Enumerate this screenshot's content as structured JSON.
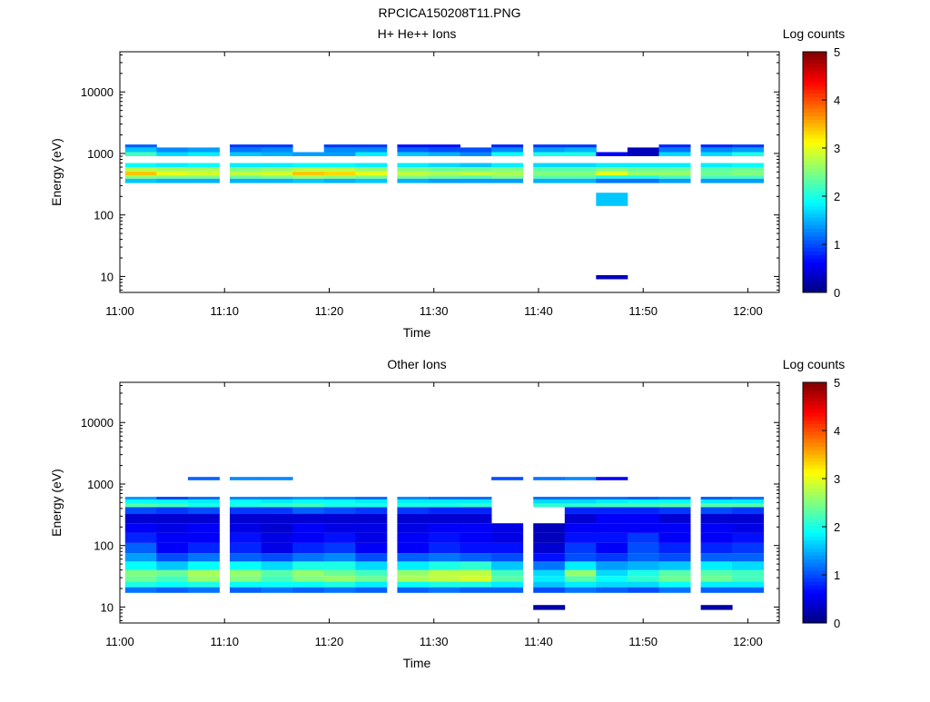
{
  "figure": {
    "title": "RPCICA150208T11.PNG"
  },
  "colorbar": {
    "label": "Log counts",
    "ticks": [
      0,
      1,
      2,
      3,
      4,
      5
    ],
    "colormap": "jet"
  },
  "chart_data": [
    {
      "type": "heatmap",
      "title": "H+ He++ Ions",
      "xlabel": "Time",
      "ylabel": "Energy (eV)",
      "x_ticks": [
        "11:00",
        "11:10",
        "11:20",
        "11:30",
        "11:40",
        "11:50",
        "12:00"
      ],
      "y_ticks": [
        "10",
        "100",
        "1000",
        "10000"
      ],
      "y_scale": "log",
      "xlim": [
        "11:00",
        "12:03"
      ],
      "ylim": [
        5.5,
        45000
      ],
      "color_range": [
        0,
        5
      ],
      "time_bins": [
        "11:02",
        "11:05",
        "11:08",
        "11:12",
        "11:15",
        "11:18",
        "11:21",
        "11:24",
        "11:28",
        "11:31",
        "11:34",
        "11:37",
        "11:41",
        "11:44",
        "11:47",
        "11:50",
        "11:53",
        "11:57",
        "12:00"
      ],
      "bands": [
        {
          "e": [
            330,
            390
          ],
          "v": [
            1.6,
            1.5,
            1.5,
            1.5,
            1.5,
            1.6,
            1.5,
            1.6,
            1.5,
            1.4,
            1.4,
            1.4,
            1.5,
            1.5,
            1.2,
            1.2,
            1.4,
            1.4,
            1.4
          ]
        },
        {
          "e": [
            390,
            440
          ],
          "v": [
            2.6,
            2.5,
            2.5,
            2.4,
            2.5,
            2.7,
            2.6,
            2.5,
            2.5,
            2.4,
            2.3,
            2.5,
            2.3,
            2.3,
            2.0,
            2.0,
            2.2,
            2.2,
            2.2
          ]
        },
        {
          "e": [
            440,
            510
          ],
          "v": [
            3.4,
            3.0,
            2.9,
            2.8,
            2.9,
            3.4,
            3.3,
            3.0,
            2.8,
            2.7,
            2.8,
            2.7,
            2.5,
            2.5,
            3.0,
            2.6,
            2.6,
            2.4,
            2.5
          ]
        },
        {
          "e": [
            510,
            600
          ],
          "v": [
            2.8,
            2.7,
            2.7,
            2.5,
            2.6,
            2.8,
            2.8,
            2.6,
            2.5,
            2.4,
            2.4,
            2.5,
            2.3,
            2.3,
            2.5,
            2.4,
            2.4,
            2.3,
            2.4
          ]
        },
        {
          "e": [
            600,
            700
          ],
          "v": [
            1.9,
            1.8,
            1.9,
            1.8,
            1.8,
            1.9,
            1.9,
            1.8,
            1.8,
            1.7,
            1.6,
            1.8,
            1.7,
            1.7,
            1.8,
            1.8,
            1.8,
            1.8,
            1.9
          ]
        },
        {
          "e": [
            900,
            1050
          ],
          "v": [
            2.2,
            1.7,
            1.8,
            1.6,
            1.5,
            1.4,
            1.4,
            1.8,
            1.6,
            1.5,
            1.3,
            1.9,
            2.0,
            2.0,
            0.6,
            0.3,
            1.7,
            1.7,
            2.0
          ]
        },
        {
          "e": [
            1050,
            1250
          ],
          "v": [
            1.6,
            1.3,
            1.4,
            1.2,
            1.3,
            0,
            1.3,
            1.3,
            1.1,
            1.0,
            1.0,
            1.3,
            1.4,
            1.5,
            0,
            0.3,
            1.2,
            1.3,
            1.4
          ]
        },
        {
          "e": [
            1250,
            1400
          ],
          "v": [
            1.1,
            0,
            0,
            0.9,
            0.9,
            0,
            0.9,
            0.9,
            0.7,
            0.7,
            0,
            0.8,
            0.9,
            0.9,
            0,
            0,
            0.8,
            0.8,
            0.9
          ]
        },
        {
          "e": [
            140,
            230
          ],
          "v": [
            0,
            0,
            0,
            0,
            0,
            0,
            0,
            0,
            0,
            0,
            0,
            0,
            0,
            0,
            1.6,
            0,
            0,
            0,
            0
          ]
        },
        {
          "e": [
            9,
            10.5
          ],
          "v": [
            0,
            0,
            0,
            0,
            0,
            0,
            0,
            0,
            0,
            0,
            0,
            0,
            0,
            0,
            0.3,
            0,
            0,
            0,
            0
          ]
        }
      ]
    },
    {
      "type": "heatmap",
      "title": "Other Ions",
      "xlabel": "Time",
      "ylabel": "Energy (eV)",
      "x_ticks": [
        "11:00",
        "11:10",
        "11:20",
        "11:30",
        "11:40",
        "11:50",
        "12:00"
      ],
      "y_ticks": [
        "10",
        "100",
        "1000",
        "10000"
      ],
      "y_scale": "log",
      "xlim": [
        "11:00",
        "12:03"
      ],
      "ylim": [
        5.5,
        45000
      ],
      "color_range": [
        0,
        5
      ],
      "time_bins": [
        "11:02",
        "11:05",
        "11:08",
        "11:12",
        "11:15",
        "11:18",
        "11:21",
        "11:24",
        "11:28",
        "11:31",
        "11:34",
        "11:37",
        "11:41",
        "11:44",
        "11:47",
        "11:50",
        "11:53",
        "11:57",
        "12:00"
      ],
      "bands": [
        {
          "e": [
            17,
            21
          ],
          "v": [
            1.2,
            1.1,
            1.2,
            1.1,
            1.2,
            1.1,
            1.2,
            1.1,
            1.1,
            1.2,
            1.1,
            1.1,
            1.0,
            1.2,
            1.1,
            1.0,
            1.2,
            1.1,
            1.1
          ]
        },
        {
          "e": [
            21,
            26
          ],
          "v": [
            2.0,
            1.9,
            2.0,
            1.9,
            1.9,
            1.9,
            2.0,
            1.8,
            1.9,
            2.0,
            2.0,
            1.8,
            1.6,
            1.8,
            1.7,
            1.7,
            1.9,
            1.8,
            1.8
          ]
        },
        {
          "e": [
            26,
            32
          ],
          "v": [
            2.4,
            2.2,
            2.6,
            2.5,
            2.2,
            2.5,
            2.6,
            2.4,
            2.7,
            2.8,
            2.9,
            2.3,
            1.8,
            2.3,
            1.9,
            2.1,
            2.4,
            2.4,
            2.2
          ]
        },
        {
          "e": [
            32,
            40
          ],
          "v": [
            2.5,
            2.4,
            2.7,
            2.6,
            2.3,
            2.6,
            2.4,
            2.2,
            2.6,
            2.8,
            2.8,
            2.2,
            1.7,
            2.6,
            1.7,
            2.0,
            2.3,
            2.3,
            2.2
          ]
        },
        {
          "e": [
            40,
            55
          ],
          "v": [
            1.9,
            1.6,
            1.9,
            1.9,
            1.7,
            2.0,
            2.0,
            1.7,
            1.8,
            2.0,
            2.1,
            1.6,
            1.2,
            1.8,
            1.4,
            1.5,
            1.6,
            1.8,
            1.7
          ]
        },
        {
          "e": [
            55,
            75
          ],
          "v": [
            1.4,
            1.0,
            1.2,
            1.1,
            1.0,
            1.2,
            1.3,
            1.0,
            1.1,
            1.2,
            1.1,
            1.0,
            0.7,
            1.0,
            0.9,
            1.1,
            1.0,
            1.1,
            1.1
          ]
        },
        {
          "e": [
            75,
            110
          ],
          "v": [
            1.1,
            0.6,
            0.8,
            0.8,
            0.5,
            0.8,
            0.9,
            0.6,
            0.6,
            0.8,
            0.7,
            0.7,
            0.4,
            0.9,
            0.6,
            1.0,
            0.8,
            0.8,
            0.9
          ]
        },
        {
          "e": [
            110,
            160
          ],
          "v": [
            0.8,
            0.6,
            0.6,
            0.7,
            0.5,
            0.6,
            0.7,
            0.5,
            0.6,
            0.7,
            0.6,
            0.5,
            0.3,
            0.7,
            0.7,
            0.9,
            0.6,
            0.6,
            0.7
          ]
        },
        {
          "e": [
            160,
            230
          ],
          "v": [
            0.6,
            0.5,
            0.6,
            0.5,
            0.4,
            0.6,
            0.5,
            0.5,
            0.5,
            0.6,
            0.6,
            0.5,
            0.3,
            0.6,
            0.6,
            0.6,
            0.6,
            0.6,
            0.5
          ]
        },
        {
          "e": [
            230,
            330
          ],
          "v": [
            0.4,
            0.4,
            0.4,
            0.4,
            0.4,
            0.4,
            0.4,
            0.4,
            0.4,
            0.4,
            0.4,
            0,
            0,
            0.4,
            0.6,
            0.6,
            0.4,
            0.4,
            0.4
          ]
        },
        {
          "e": [
            330,
            420
          ],
          "v": [
            1.0,
            0.9,
            1.0,
            0.9,
            0.9,
            1.1,
            1.0,
            0.9,
            0.9,
            0.8,
            0.8,
            0,
            0,
            0.8,
            0.8,
            0.8,
            0.9,
            1.0,
            0.9
          ]
        },
        {
          "e": [
            420,
            480
          ],
          "v": [
            2.3,
            2.2,
            2.0,
            2.0,
            2.1,
            2.2,
            2.0,
            2.0,
            2.0,
            2.0,
            2.1,
            0,
            2.1,
            2.1,
            2.2,
            2.2,
            2.3,
            2.3,
            2.3
          ]
        },
        {
          "e": [
            480,
            560
          ],
          "v": [
            1.9,
            1.9,
            1.8,
            1.9,
            1.8,
            1.9,
            1.9,
            1.8,
            1.8,
            1.8,
            1.8,
            0,
            1.7,
            1.7,
            1.8,
            1.9,
            1.9,
            1.8,
            1.8
          ]
        },
        {
          "e": [
            560,
            620
          ],
          "v": [
            1.4,
            1.0,
            1.2,
            1.3,
            1.3,
            1.4,
            1.3,
            1.2,
            1.3,
            1.2,
            1.2,
            0,
            1.2,
            1.2,
            1.2,
            1.1,
            1.2,
            1.1,
            1.2
          ]
        },
        {
          "e": [
            1150,
            1300
          ],
          "v": [
            0,
            0,
            1.1,
            1.3,
            1.3,
            0,
            0,
            0,
            0,
            0,
            0,
            1.0,
            1.2,
            1.3,
            0.6,
            0,
            0,
            0,
            0
          ]
        },
        {
          "e": [
            9,
            10.8
          ],
          "v": [
            0,
            0,
            0,
            0,
            0,
            0,
            0,
            0,
            0,
            0,
            0,
            0,
            0.2,
            0,
            0,
            0,
            0,
            0.2,
            0
          ]
        }
      ]
    }
  ]
}
